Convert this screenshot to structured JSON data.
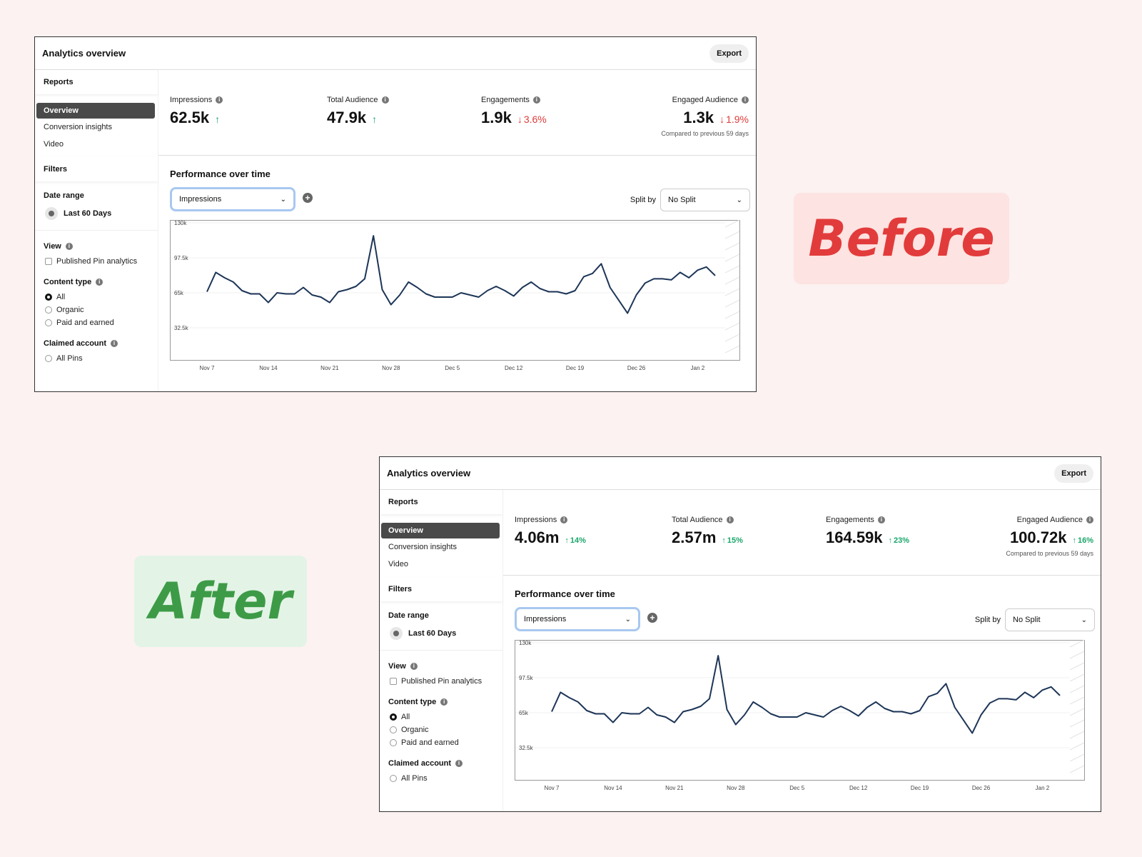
{
  "labels": {
    "before": "Before",
    "after": "After"
  },
  "colors": {
    "up": "#1aa66a",
    "down": "#e03a3a",
    "line": "#1d3557",
    "selected": "#4a4a4a"
  },
  "panels": {
    "before": {
      "title": "Analytics overview",
      "export_label": "Export",
      "sidebar": {
        "reports_heading": "Reports",
        "items": [
          "Overview",
          "Conversion insights",
          "Video"
        ],
        "filters_heading": "Filters",
        "date_range_label": "Date range",
        "date_range_value": "Last 60 Days",
        "view_label": "View",
        "view_option": "Published Pin analytics",
        "content_type_label": "Content type",
        "content_options": [
          "All",
          "Organic",
          "Paid and earned"
        ],
        "claimed_label": "Claimed account",
        "claimed_option": "All Pins"
      },
      "kpis": [
        {
          "label": "Impressions",
          "value": "62.5k",
          "dir": "up",
          "delta": ""
        },
        {
          "label": "Total Audience",
          "value": "47.9k",
          "dir": "up",
          "delta": ""
        },
        {
          "label": "Engagements",
          "value": "1.9k",
          "dir": "down",
          "delta": "3.6%"
        },
        {
          "label": "Engaged Audience",
          "value": "1.3k",
          "dir": "down",
          "delta": "1.9%"
        }
      ],
      "compare_note": "Compared to previous 59 days",
      "perf_title": "Performance over time",
      "metric_value": "Impressions",
      "split_label": "Split by",
      "split_value": "No Split"
    },
    "after": {
      "title": "Analytics overview",
      "export_label": "Export",
      "sidebar": {
        "reports_heading": "Reports",
        "items": [
          "Overview",
          "Conversion insights",
          "Video"
        ],
        "filters_heading": "Filters",
        "date_range_label": "Date range",
        "date_range_value": "Last 60 Days",
        "view_label": "View",
        "view_option": "Published Pin analytics",
        "content_type_label": "Content type",
        "content_options": [
          "All",
          "Organic",
          "Paid and earned"
        ],
        "claimed_label": "Claimed account",
        "claimed_option": "All Pins"
      },
      "kpis": [
        {
          "label": "Impressions",
          "value": "4.06m",
          "dir": "up",
          "delta": "14%"
        },
        {
          "label": "Total Audience",
          "value": "2.57m",
          "dir": "up",
          "delta": "15%"
        },
        {
          "label": "Engagements",
          "value": "164.59k",
          "dir": "up",
          "delta": "23%"
        },
        {
          "label": "Engaged Audience",
          "value": "100.72k",
          "dir": "up",
          "delta": "16%"
        }
      ],
      "compare_note": "Compared to previous 59 days",
      "perf_title": "Performance over time",
      "metric_value": "Impressions",
      "split_label": "Split by",
      "split_value": "No Split"
    }
  },
  "chart_data": {
    "type": "line",
    "y_ticks": [
      "130k",
      "97.5k",
      "65k",
      "32.5k"
    ],
    "y_tick_values": [
      130000,
      97500,
      65000,
      32500
    ],
    "ylim": [
      0,
      130000
    ],
    "x_tick_labels": [
      "Nov 7",
      "Nov 14",
      "Nov 21",
      "Nov 28",
      "Dec 5",
      "Dec 12",
      "Dec 19",
      "Dec 26",
      "Jan 2"
    ],
    "x": [
      "Nov 7",
      "Nov 8",
      "Nov 9",
      "Nov 10",
      "Nov 11",
      "Nov 12",
      "Nov 13",
      "Nov 14",
      "Nov 15",
      "Nov 16",
      "Nov 17",
      "Nov 18",
      "Nov 19",
      "Nov 20",
      "Nov 21",
      "Nov 22",
      "Nov 23",
      "Nov 24",
      "Nov 25",
      "Nov 26",
      "Nov 27",
      "Nov 28",
      "Nov 29",
      "Nov 30",
      "Dec 1",
      "Dec 2",
      "Dec 3",
      "Dec 4",
      "Dec 5",
      "Dec 6",
      "Dec 7",
      "Dec 8",
      "Dec 9",
      "Dec 10",
      "Dec 11",
      "Dec 12",
      "Dec 13",
      "Dec 14",
      "Dec 15",
      "Dec 16",
      "Dec 17",
      "Dec 18",
      "Dec 19",
      "Dec 20",
      "Dec 21",
      "Dec 22",
      "Dec 23",
      "Dec 24",
      "Dec 25",
      "Dec 26",
      "Dec 27",
      "Dec 28",
      "Dec 29",
      "Dec 30",
      "Dec 31",
      "Jan 1",
      "Jan 2",
      "Jan 3",
      "Jan 4"
    ],
    "series": [
      {
        "values": [
          66000,
          84000,
          79000,
          75000,
          67000,
          64000,
          64000,
          56000,
          65000,
          64000,
          64000,
          70000,
          63000,
          61000,
          56000,
          66000,
          68000,
          71000,
          78000,
          118000,
          68000,
          54000,
          63000,
          75000,
          70000,
          64000,
          61000,
          61000,
          61000,
          65000,
          63000,
          61000,
          67000,
          71000,
          67000,
          62000,
          70000,
          75000,
          69000,
          66000,
          66000,
          64000,
          67000,
          80000,
          83000,
          92000,
          70000,
          58000,
          46000,
          63000,
          74000,
          78000,
          78000,
          77000,
          84000,
          79000,
          86000,
          89000,
          81000
        ]
      }
    ]
  }
}
